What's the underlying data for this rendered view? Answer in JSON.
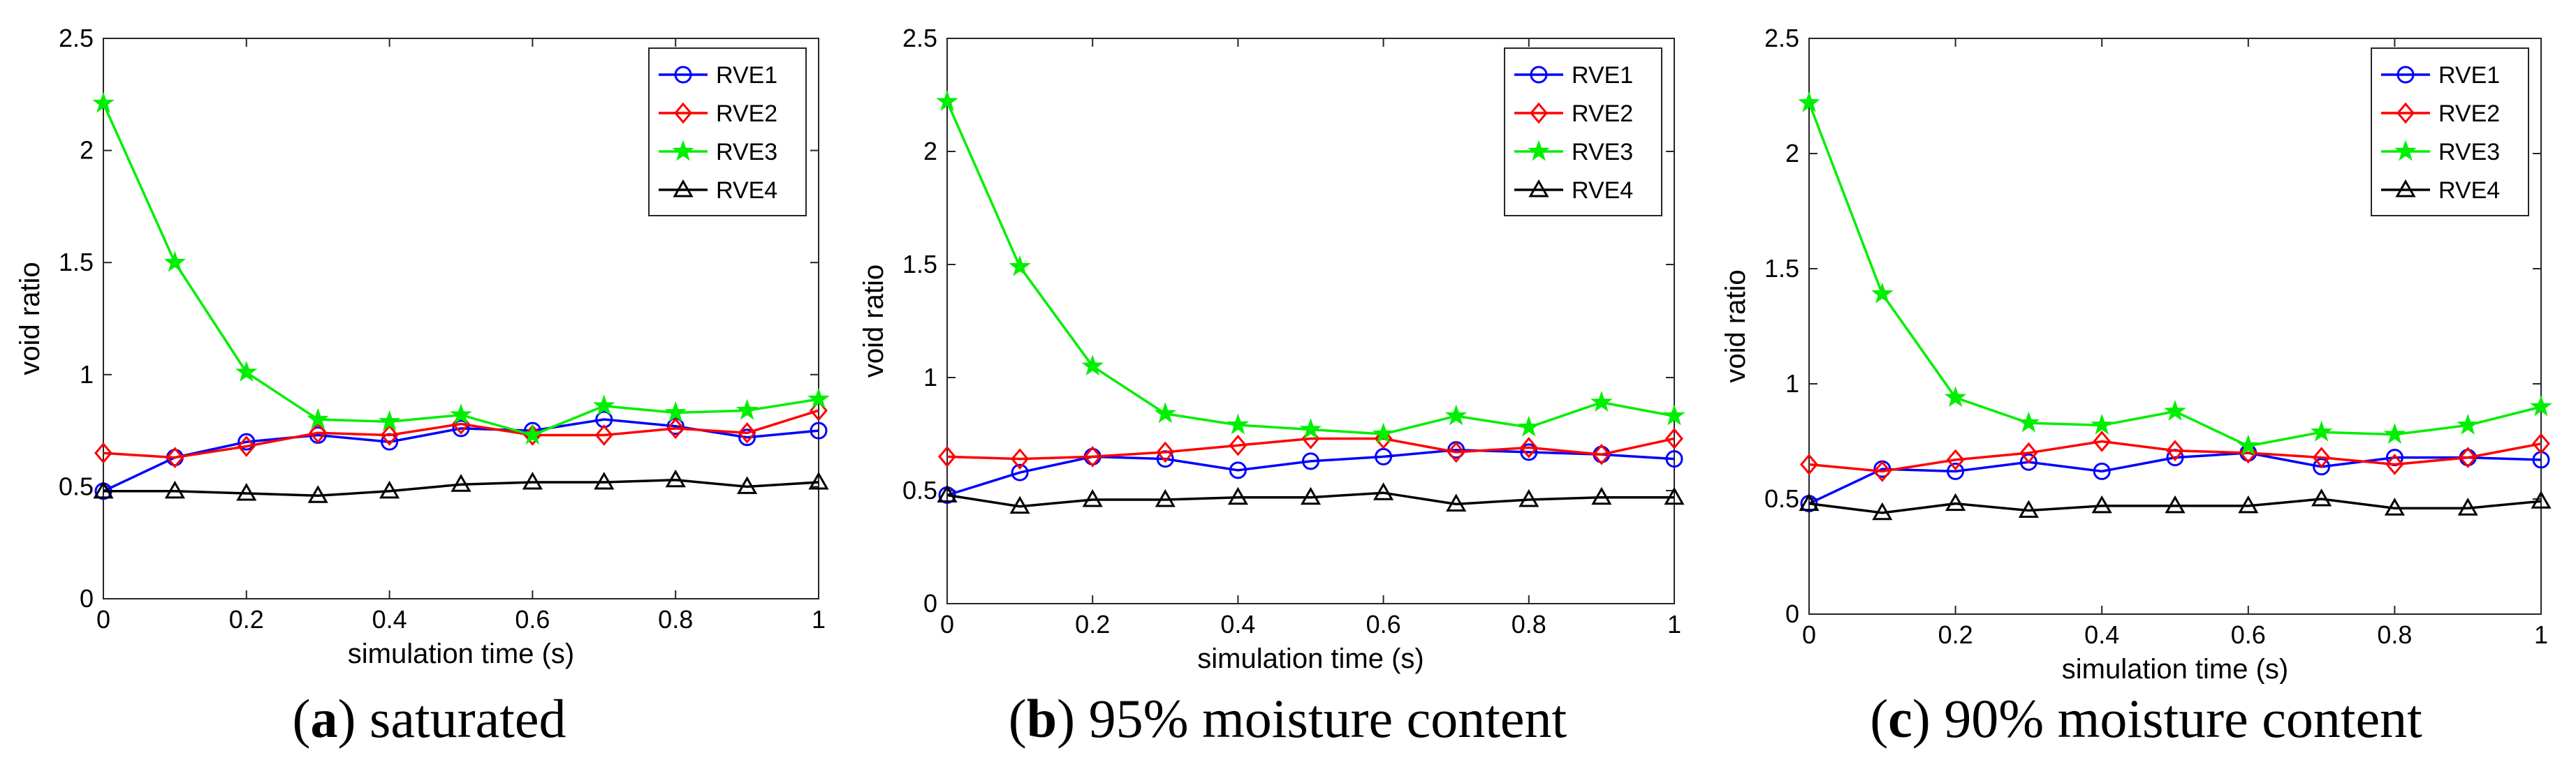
{
  "chart_data": [
    {
      "type": "line",
      "panel_letter": "a",
      "caption_rest": " saturated",
      "xlabel": "simulation time (s)",
      "ylabel": "void ratio",
      "xlim": [
        0,
        1
      ],
      "ylim": [
        0,
        2.5
      ],
      "xticks": [
        "0",
        "0.2",
        "0.4",
        "0.6",
        "0.8",
        "1"
      ],
      "yticks": [
        "0",
        "0.5",
        "1",
        "1.5",
        "2",
        "2.5"
      ],
      "legend_position": "top-right",
      "x": [
        0,
        0.1,
        0.2,
        0.3,
        0.4,
        0.5,
        0.6,
        0.7,
        0.8,
        0.9,
        1.0
      ],
      "series": [
        {
          "name": "RVE1",
          "color": "#0000ff",
          "marker": "circle",
          "values": [
            0.48,
            0.63,
            0.7,
            0.73,
            0.7,
            0.76,
            0.75,
            0.8,
            0.77,
            0.72,
            0.75
          ]
        },
        {
          "name": "RVE2",
          "color": "#ff0000",
          "marker": "diamond",
          "values": [
            0.65,
            0.63,
            0.68,
            0.74,
            0.73,
            0.78,
            0.73,
            0.73,
            0.76,
            0.74,
            0.84
          ]
        },
        {
          "name": "RVE3",
          "color": "#00ee00",
          "marker": "star",
          "values": [
            2.21,
            1.5,
            1.01,
            0.8,
            0.79,
            0.82,
            0.73,
            0.86,
            0.83,
            0.84,
            0.89
          ]
        },
        {
          "name": "RVE4",
          "color": "#000000",
          "marker": "triangle",
          "values": [
            0.48,
            0.48,
            0.47,
            0.46,
            0.48,
            0.51,
            0.52,
            0.52,
            0.53,
            0.5,
            0.52
          ]
        }
      ]
    },
    {
      "type": "line",
      "panel_letter": "b",
      "caption_rest": " 95% moisture content",
      "xlabel": "simulation time (s)",
      "ylabel": "void ratio",
      "xlim": [
        0,
        1
      ],
      "ylim": [
        0,
        2.5
      ],
      "xticks": [
        "0",
        "0.2",
        "0.4",
        "0.6",
        "0.8",
        "1"
      ],
      "yticks": [
        "0",
        "0.5",
        "1",
        "1.5",
        "2",
        "2.5"
      ],
      "legend_position": "top-right",
      "x": [
        0,
        0.1,
        0.2,
        0.3,
        0.4,
        0.5,
        0.6,
        0.7,
        0.8,
        0.9,
        1.0
      ],
      "series": [
        {
          "name": "RVE1",
          "color": "#0000ff",
          "marker": "circle",
          "values": [
            0.48,
            0.58,
            0.65,
            0.64,
            0.59,
            0.63,
            0.65,
            0.68,
            0.67,
            0.66,
            0.64
          ]
        },
        {
          "name": "RVE2",
          "color": "#ff0000",
          "marker": "diamond",
          "values": [
            0.65,
            0.64,
            0.65,
            0.67,
            0.7,
            0.73,
            0.73,
            0.67,
            0.69,
            0.66,
            0.73
          ]
        },
        {
          "name": "RVE3",
          "color": "#00ee00",
          "marker": "star",
          "values": [
            2.22,
            1.49,
            1.05,
            0.84,
            0.79,
            0.77,
            0.75,
            0.83,
            0.78,
            0.89,
            0.83
          ]
        },
        {
          "name": "RVE4",
          "color": "#000000",
          "marker": "triangle",
          "values": [
            0.48,
            0.43,
            0.46,
            0.46,
            0.47,
            0.47,
            0.49,
            0.44,
            0.46,
            0.47,
            0.47
          ]
        }
      ]
    },
    {
      "type": "line",
      "panel_letter": "c",
      "caption_rest": " 90% moisture content",
      "xlabel": "simulation time (s)",
      "ylabel": "void ratio",
      "xlim": [
        0,
        1
      ],
      "ylim": [
        0,
        2.5
      ],
      "xticks": [
        "0",
        "0.2",
        "0.4",
        "0.6",
        "0.8",
        "1"
      ],
      "yticks": [
        "0",
        "0.5",
        "1",
        "1.5",
        "2",
        "2.5"
      ],
      "legend_position": "top-right",
      "x": [
        0,
        0.1,
        0.2,
        0.3,
        0.4,
        0.5,
        0.6,
        0.7,
        0.8,
        0.9,
        1.0
      ],
      "series": [
        {
          "name": "RVE1",
          "color": "#0000ff",
          "marker": "circle",
          "values": [
            0.48,
            0.63,
            0.62,
            0.66,
            0.62,
            0.68,
            0.7,
            0.64,
            0.68,
            0.68,
            0.67
          ]
        },
        {
          "name": "RVE2",
          "color": "#ff0000",
          "marker": "diamond",
          "values": [
            0.65,
            0.62,
            0.67,
            0.7,
            0.75,
            0.71,
            0.7,
            0.68,
            0.65,
            0.68,
            0.74
          ]
        },
        {
          "name": "RVE3",
          "color": "#00ee00",
          "marker": "star",
          "values": [
            2.22,
            1.39,
            0.94,
            0.83,
            0.82,
            0.88,
            0.73,
            0.79,
            0.78,
            0.82,
            0.9
          ]
        },
        {
          "name": "RVE4",
          "color": "#000000",
          "marker": "triangle",
          "values": [
            0.48,
            0.44,
            0.48,
            0.45,
            0.47,
            0.47,
            0.47,
            0.5,
            0.46,
            0.46,
            0.49
          ]
        }
      ]
    }
  ]
}
